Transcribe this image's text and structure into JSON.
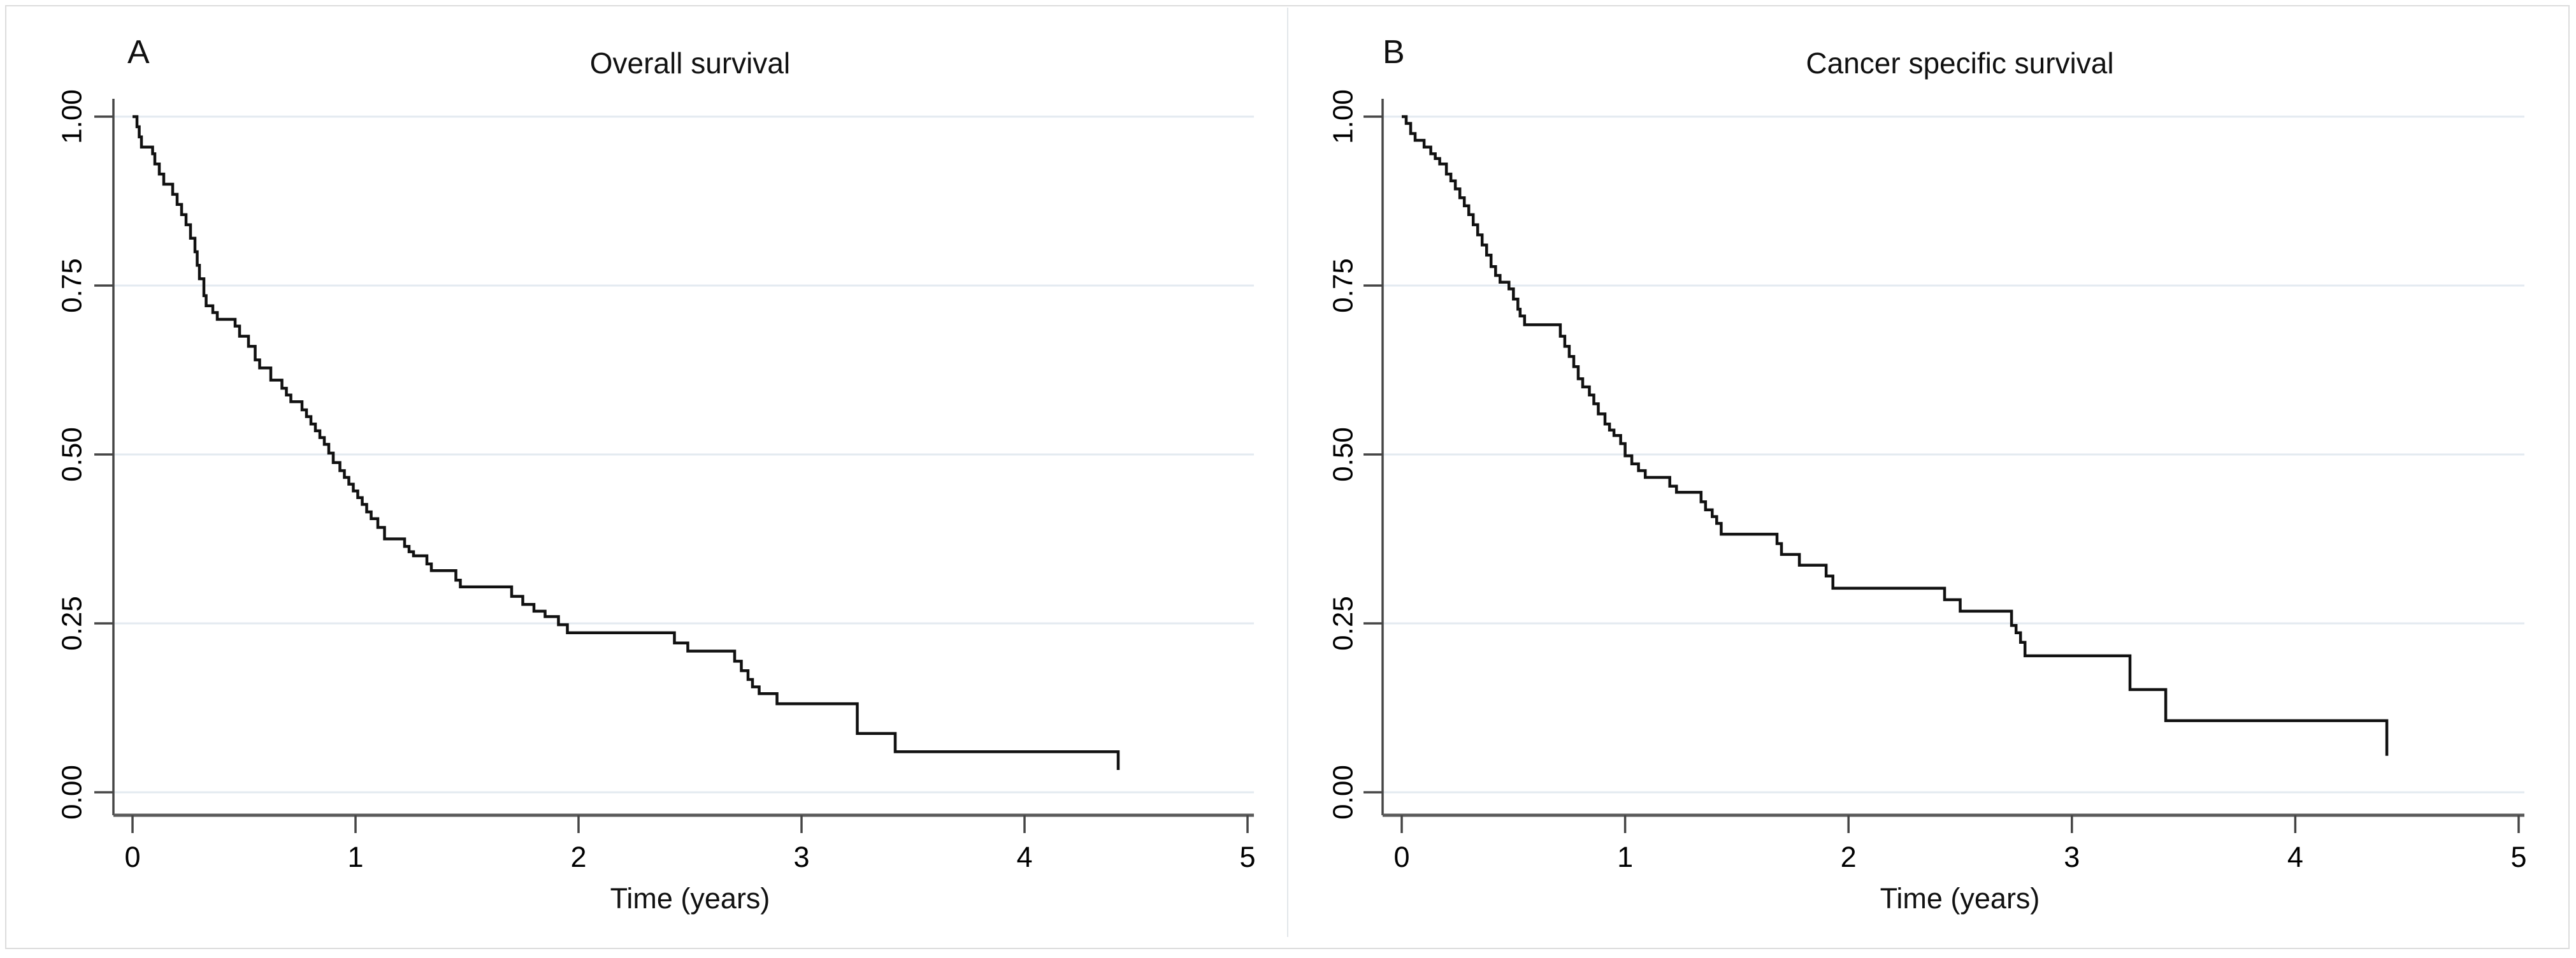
{
  "figure": {
    "kind": "Kaplan-Meier survival figure, two panels",
    "background": "#ffffff"
  },
  "colors": {
    "curve": "#111111",
    "grid": "#e3eaf0",
    "axis_domain": "#5a5a5a",
    "axis_line": "#444444",
    "tick": "#444444",
    "text": "#000000",
    "border": "#dcdcdc"
  },
  "panels": [
    {
      "letter": "A",
      "title": "Overall survival",
      "xlabel": "Time (years)"
    },
    {
      "letter": "B",
      "title": "Cancer specific survival",
      "xlabel": "Time (years)"
    }
  ],
  "chart_data": [
    {
      "type": "line",
      "subtype": "kaplan-meier-step",
      "panel": "A",
      "title": "Overall survival",
      "xlabel": "Time (years)",
      "ylabel": "",
      "xlim": [
        0,
        5
      ],
      "ylim": [
        0.0,
        1.0
      ],
      "x_ticks": [
        "0",
        "1",
        "2",
        "3",
        "4",
        "5"
      ],
      "y_ticks": [
        "0.00",
        "0.25",
        "0.50",
        "0.75",
        "1.00"
      ],
      "grid": "horizontal",
      "legend": "none",
      "points": [
        [
          0.0,
          1.0
        ],
        [
          0.02,
          0.985
        ],
        [
          0.03,
          0.97
        ],
        [
          0.04,
          0.955
        ],
        [
          0.09,
          0.945
        ],
        [
          0.1,
          0.93
        ],
        [
          0.12,
          0.915
        ],
        [
          0.14,
          0.9
        ],
        [
          0.18,
          0.885
        ],
        [
          0.2,
          0.87
        ],
        [
          0.22,
          0.855
        ],
        [
          0.24,
          0.84
        ],
        [
          0.26,
          0.82
        ],
        [
          0.28,
          0.8
        ],
        [
          0.29,
          0.78
        ],
        [
          0.3,
          0.76
        ],
        [
          0.32,
          0.735
        ],
        [
          0.33,
          0.72
        ],
        [
          0.36,
          0.71
        ],
        [
          0.38,
          0.7
        ],
        [
          0.46,
          0.69
        ],
        [
          0.48,
          0.675
        ],
        [
          0.52,
          0.66
        ],
        [
          0.55,
          0.64
        ],
        [
          0.57,
          0.628
        ],
        [
          0.62,
          0.61
        ],
        [
          0.67,
          0.598
        ],
        [
          0.69,
          0.588
        ],
        [
          0.71,
          0.578
        ],
        [
          0.76,
          0.566
        ],
        [
          0.78,
          0.556
        ],
        [
          0.8,
          0.545
        ],
        [
          0.82,
          0.535
        ],
        [
          0.84,
          0.525
        ],
        [
          0.86,
          0.515
        ],
        [
          0.88,
          0.502
        ],
        [
          0.9,
          0.488
        ],
        [
          0.93,
          0.476
        ],
        [
          0.95,
          0.466
        ],
        [
          0.97,
          0.456
        ],
        [
          0.99,
          0.446
        ],
        [
          1.01,
          0.436
        ],
        [
          1.03,
          0.426
        ],
        [
          1.05,
          0.415
        ],
        [
          1.07,
          0.405
        ],
        [
          1.1,
          0.392
        ],
        [
          1.13,
          0.375
        ],
        [
          1.22,
          0.364
        ],
        [
          1.24,
          0.356
        ],
        [
          1.26,
          0.35
        ],
        [
          1.32,
          0.338
        ],
        [
          1.34,
          0.328
        ],
        [
          1.45,
          0.314
        ],
        [
          1.47,
          0.304
        ],
        [
          1.7,
          0.29
        ],
        [
          1.75,
          0.278
        ],
        [
          1.8,
          0.268
        ],
        [
          1.85,
          0.26
        ],
        [
          1.91,
          0.248
        ],
        [
          1.95,
          0.236
        ],
        [
          2.43,
          0.221
        ],
        [
          2.49,
          0.209
        ],
        [
          2.7,
          0.194
        ],
        [
          2.73,
          0.18
        ],
        [
          2.76,
          0.167
        ],
        [
          2.78,
          0.156
        ],
        [
          2.81,
          0.146
        ],
        [
          2.89,
          0.131
        ],
        [
          3.25,
          0.087
        ],
        [
          3.42,
          0.06
        ],
        [
          4.42,
          0.033
        ]
      ]
    },
    {
      "type": "line",
      "subtype": "kaplan-meier-step",
      "panel": "B",
      "title": "Cancer specific survival",
      "xlabel": "Time (years)",
      "ylabel": "",
      "xlim": [
        0,
        5
      ],
      "ylim": [
        0.0,
        1.0
      ],
      "x_ticks": [
        "0",
        "1",
        "2",
        "3",
        "4",
        "5"
      ],
      "y_ticks": [
        "0.00",
        "0.25",
        "0.50",
        "0.75",
        "1.00"
      ],
      "grid": "horizontal",
      "legend": "none",
      "points": [
        [
          0.0,
          1.0
        ],
        [
          0.02,
          0.99
        ],
        [
          0.04,
          0.975
        ],
        [
          0.06,
          0.965
        ],
        [
          0.1,
          0.955
        ],
        [
          0.13,
          0.945
        ],
        [
          0.15,
          0.938
        ],
        [
          0.17,
          0.93
        ],
        [
          0.2,
          0.915
        ],
        [
          0.22,
          0.905
        ],
        [
          0.24,
          0.893
        ],
        [
          0.26,
          0.88
        ],
        [
          0.28,
          0.868
        ],
        [
          0.3,
          0.855
        ],
        [
          0.32,
          0.84
        ],
        [
          0.34,
          0.825
        ],
        [
          0.36,
          0.81
        ],
        [
          0.38,
          0.795
        ],
        [
          0.4,
          0.778
        ],
        [
          0.42,
          0.765
        ],
        [
          0.44,
          0.755
        ],
        [
          0.48,
          0.745
        ],
        [
          0.5,
          0.73
        ],
        [
          0.52,
          0.715
        ],
        [
          0.53,
          0.705
        ],
        [
          0.55,
          0.692
        ],
        [
          0.71,
          0.675
        ],
        [
          0.73,
          0.66
        ],
        [
          0.75,
          0.645
        ],
        [
          0.77,
          0.63
        ],
        [
          0.79,
          0.612
        ],
        [
          0.81,
          0.6
        ],
        [
          0.84,
          0.588
        ],
        [
          0.86,
          0.575
        ],
        [
          0.88,
          0.56
        ],
        [
          0.91,
          0.545
        ],
        [
          0.93,
          0.536
        ],
        [
          0.95,
          0.528
        ],
        [
          0.98,
          0.516
        ],
        [
          1.0,
          0.498
        ],
        [
          1.03,
          0.486
        ],
        [
          1.06,
          0.476
        ],
        [
          1.09,
          0.466
        ],
        [
          1.2,
          0.453
        ],
        [
          1.23,
          0.444
        ],
        [
          1.34,
          0.43
        ],
        [
          1.36,
          0.418
        ],
        [
          1.39,
          0.408
        ],
        [
          1.41,
          0.398
        ],
        [
          1.43,
          0.382
        ],
        [
          1.68,
          0.368
        ],
        [
          1.7,
          0.352
        ],
        [
          1.78,
          0.336
        ],
        [
          1.9,
          0.32
        ],
        [
          1.93,
          0.302
        ],
        [
          2.43,
          0.285
        ],
        [
          2.5,
          0.268
        ],
        [
          2.73,
          0.247
        ],
        [
          2.75,
          0.236
        ],
        [
          2.77,
          0.222
        ],
        [
          2.79,
          0.202
        ],
        [
          3.26,
          0.152
        ],
        [
          3.42,
          0.106
        ],
        [
          4.41,
          0.054
        ]
      ]
    }
  ]
}
